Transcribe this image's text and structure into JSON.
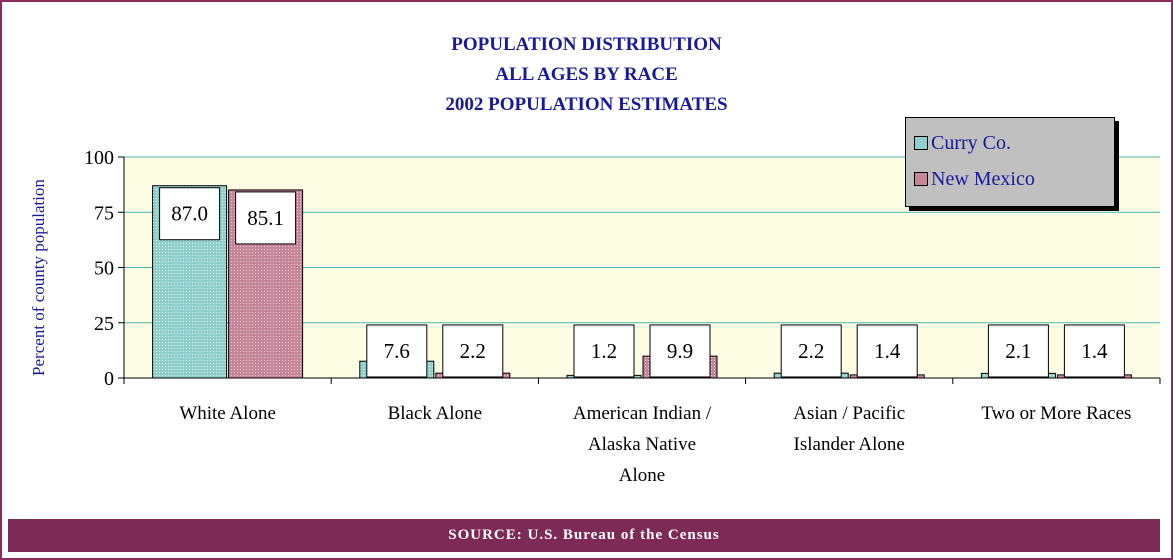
{
  "title_lines": [
    "POPULATION DISTRIBUTION",
    "ALL AGES BY RACE",
    "2002 POPULATION ESTIMATES"
  ],
  "footer": "SOURCE:  U.S. Bureau of the Census",
  "colors": {
    "curry": "#8fd0cc",
    "nm": "#c5869a",
    "plot_bg": "#fdfde4",
    "frame": "#8b2a5b",
    "title": "#1a1a99"
  },
  "chart_data": {
    "type": "bar",
    "categories": [
      "White Alone",
      "Black Alone",
      "American Indian / Alaska Native Alone",
      "Asian / Pacific Islander Alone",
      "Two or More Races"
    ],
    "category_lines": [
      [
        "White Alone"
      ],
      [
        "Black Alone"
      ],
      [
        "American Indian /",
        "Alaska Native",
        "Alone"
      ],
      [
        "Asian / Pacific",
        "Islander Alone"
      ],
      [
        "Two or More Races"
      ]
    ],
    "series": [
      {
        "name": "Curry Co.",
        "values": [
          87.0,
          7.6,
          1.2,
          2.2,
          2.1
        ],
        "labels": [
          "87.0",
          "7.6",
          "1.2",
          "2.2",
          "2.1"
        ]
      },
      {
        "name": "New Mexico",
        "values": [
          85.1,
          2.2,
          9.9,
          1.4,
          1.4
        ],
        "labels": [
          "85.1",
          "2.2",
          "9.9",
          "1.4",
          "1.4"
        ]
      }
    ],
    "ylabel": "Percent of county population",
    "ylim": [
      0,
      100
    ],
    "yticks": [
      "0",
      "25",
      "50",
      "75",
      "100"
    ],
    "grid": true,
    "legend_position": "top-right"
  }
}
